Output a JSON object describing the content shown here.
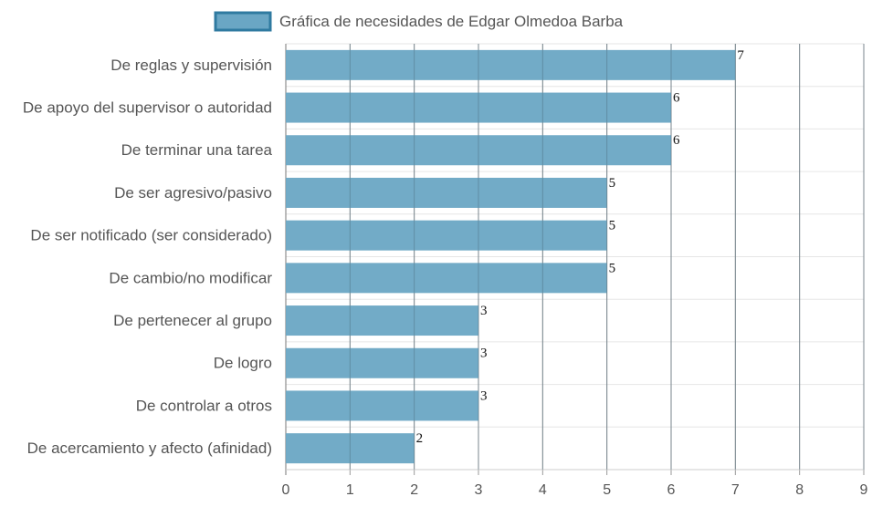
{
  "chart_data": {
    "type": "bar",
    "orientation": "horizontal",
    "categories": [
      "De reglas y supervisión",
      "De apoyo del supervisor o autoridad",
      "De terminar una tarea",
      "De ser agresivo/pasivo",
      "De ser notificado (ser considerado)",
      "De cambio/no modificar",
      "De pertenecer al grupo",
      "De logro",
      "De controlar a otros",
      "De acercamiento y afecto (afinidad)"
    ],
    "series": [
      {
        "name": "Gráfica de necesidades de Edgar Olmedoa Barba",
        "values": [
          7,
          6,
          6,
          5,
          5,
          5,
          3,
          3,
          3,
          2
        ],
        "color": "#6aa6c4",
        "border_color": "#2f7aa0"
      }
    ],
    "data_labels": [
      "7",
      "6",
      "6",
      "5",
      "5",
      "5",
      "3",
      "3",
      "3",
      "2"
    ],
    "x_ticks": [
      "0",
      "1",
      "2",
      "3",
      "4",
      "5",
      "6",
      "7",
      "8",
      "9"
    ],
    "xlim": [
      0,
      9
    ],
    "grid": true,
    "legend_position": "top",
    "grid_color": "#e6e6e6",
    "vertical_grid_color": "#9a9a9a"
  }
}
